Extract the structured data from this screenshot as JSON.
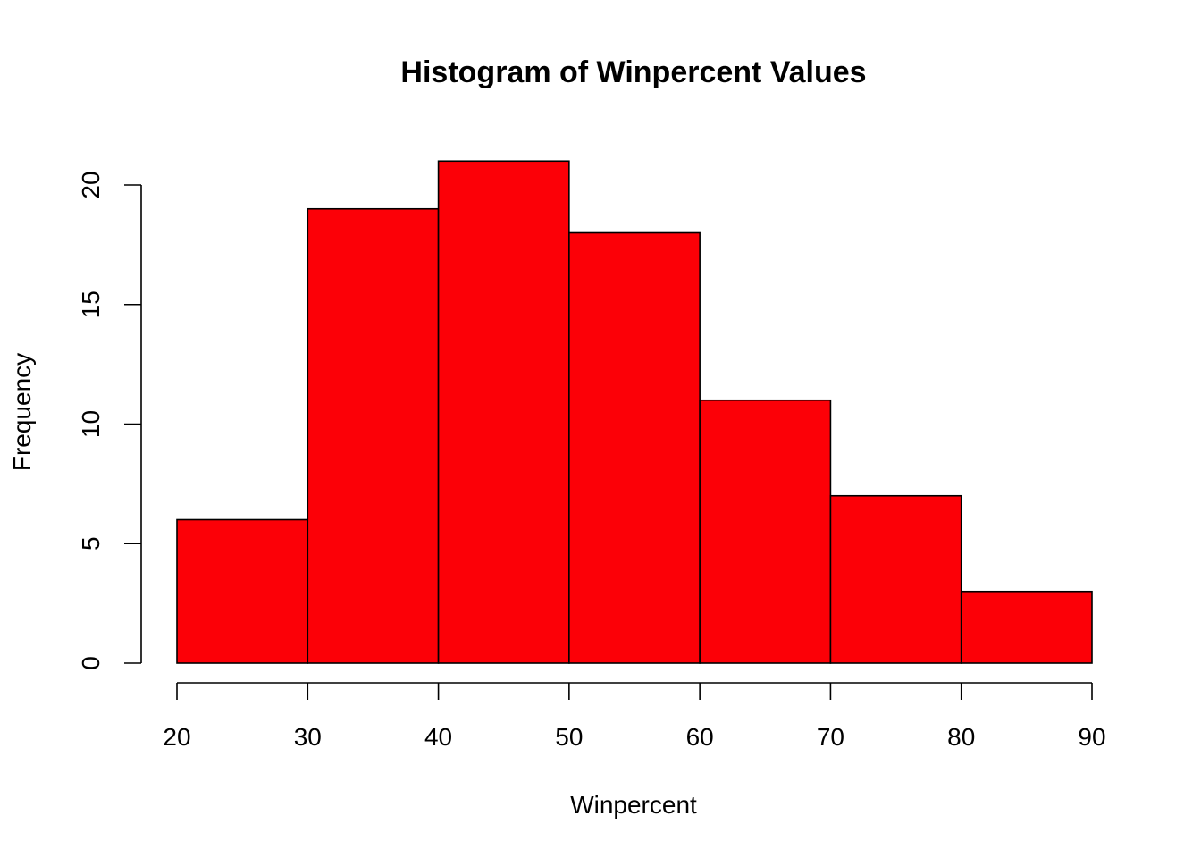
{
  "chart_data": {
    "type": "bar",
    "title": "Histogram of Winpercent Values",
    "xlabel": "Winpercent",
    "ylabel": "Frequency",
    "bins": [
      {
        "start": 20,
        "end": 30,
        "count": 6
      },
      {
        "start": 30,
        "end": 40,
        "count": 19
      },
      {
        "start": 40,
        "end": 50,
        "count": 21
      },
      {
        "start": 50,
        "end": 60,
        "count": 18
      },
      {
        "start": 60,
        "end": 70,
        "count": 11
      },
      {
        "start": 70,
        "end": 80,
        "count": 7
      },
      {
        "start": 80,
        "end": 90,
        "count": 3
      }
    ],
    "xlim": [
      20,
      90
    ],
    "ylim": [
      0,
      21
    ],
    "x_ticks": [
      20,
      30,
      40,
      50,
      60,
      70,
      80,
      90
    ],
    "y_ticks": [
      0,
      5,
      10,
      15,
      20
    ],
    "bar_color": "#fc0007",
    "edge_color": "#000000",
    "grid": false,
    "legend": "none"
  }
}
